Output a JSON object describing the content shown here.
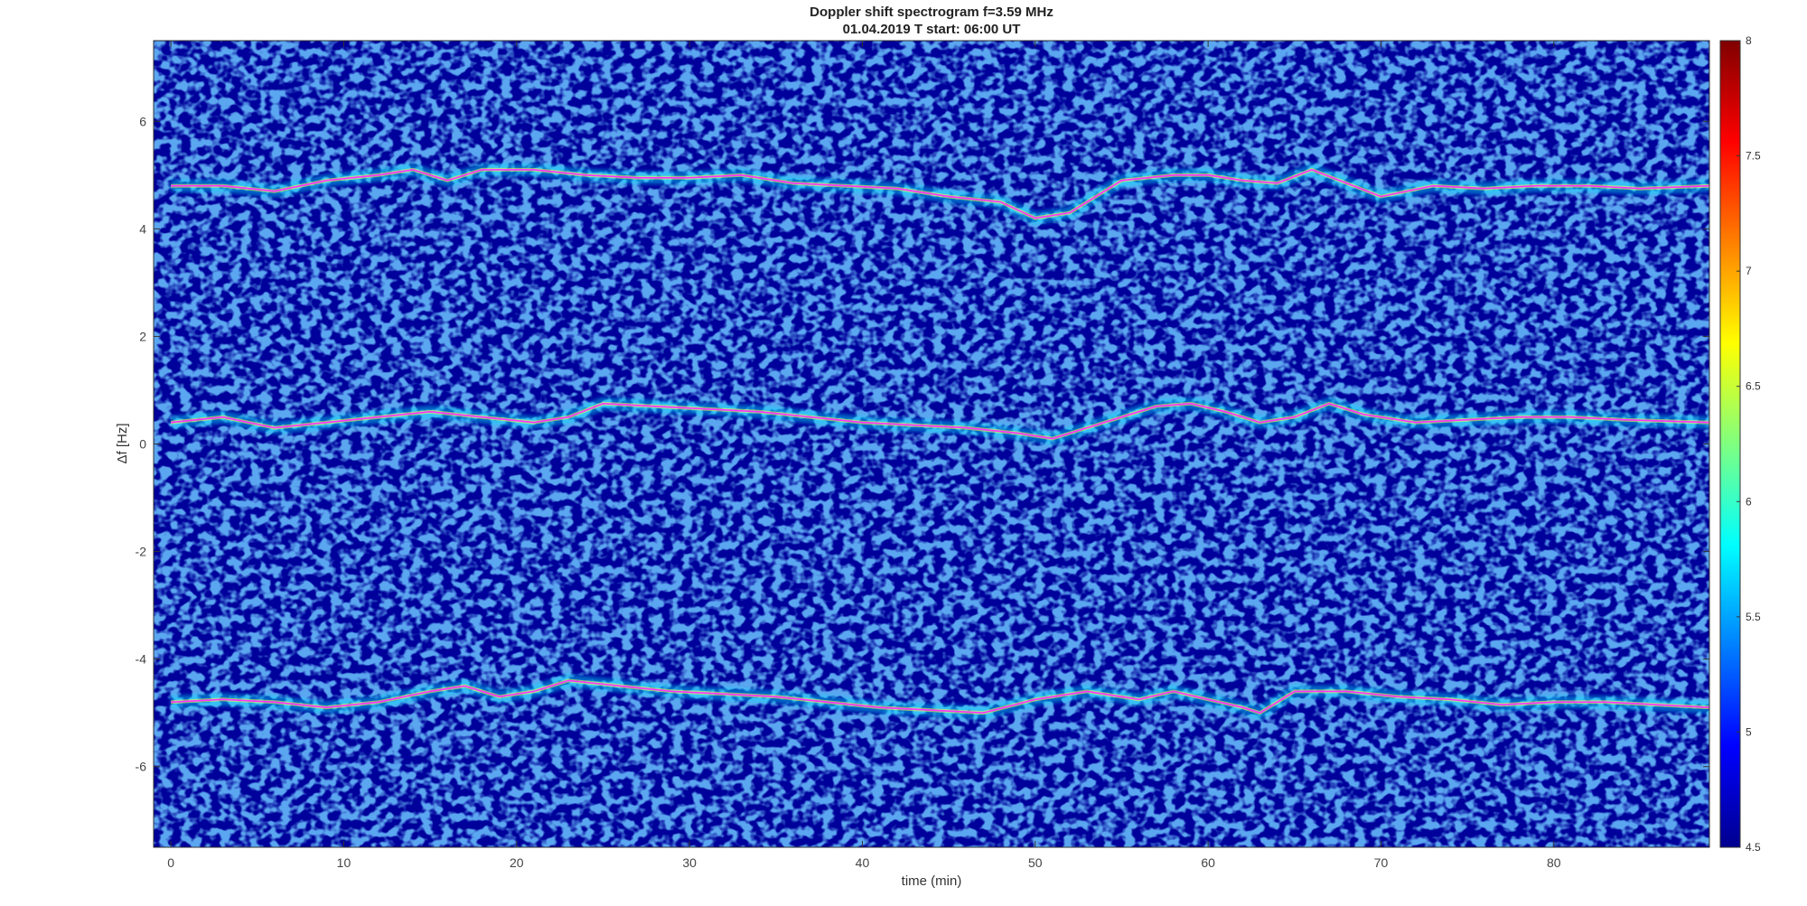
{
  "chart_data": {
    "type": "heatmap",
    "title": "Doppler shift spectrogram f=3.59 MHz",
    "subtitle": "01.04.2019   T start: 06:00 UT",
    "xlabel": "time (min)",
    "ylabel": "Δf [Hz]",
    "xlim": [
      -1,
      89
    ],
    "ylim": [
      -7.5,
      7.5
    ],
    "xticks": [
      0,
      10,
      20,
      30,
      40,
      50,
      60,
      70,
      80
    ],
    "yticks": [
      -6,
      -4,
      -2,
      0,
      2,
      4,
      6
    ],
    "colorbar": {
      "colormap": "jet",
      "range": [
        4.5,
        8
      ],
      "ticks": [
        4.5,
        5,
        5.5,
        6,
        6.5,
        7,
        7.5,
        8
      ]
    },
    "series": [
      {
        "x": [
          0,
          3,
          6,
          9,
          12,
          14,
          16,
          18,
          21,
          24,
          27,
          30,
          33,
          36,
          39,
          42,
          45,
          48,
          50,
          52,
          53,
          55,
          58,
          60,
          62,
          64,
          66,
          68,
          70,
          73,
          76,
          79,
          82,
          85,
          89
        ],
        "y": [
          4.8,
          4.8,
          4.7,
          4.9,
          5.0,
          5.1,
          4.9,
          5.1,
          5.1,
          5.0,
          4.95,
          4.95,
          5.0,
          4.85,
          4.8,
          4.75,
          4.6,
          4.5,
          4.2,
          4.3,
          4.5,
          4.9,
          5.0,
          5.0,
          4.9,
          4.85,
          5.1,
          4.85,
          4.6,
          4.8,
          4.75,
          4.8,
          4.8,
          4.75,
          4.8
        ]
      },
      {
        "x": [
          0,
          3,
          6,
          9,
          12,
          15,
          18,
          21,
          23,
          25,
          28,
          31,
          34,
          37,
          40,
          43,
          46,
          49,
          51,
          53,
          55,
          57,
          59,
          61,
          63,
          65,
          67,
          69,
          72,
          75,
          78,
          81,
          84,
          89
        ],
        "y": [
          0.4,
          0.5,
          0.3,
          0.4,
          0.5,
          0.6,
          0.5,
          0.4,
          0.5,
          0.75,
          0.7,
          0.65,
          0.6,
          0.5,
          0.4,
          0.35,
          0.3,
          0.2,
          0.1,
          0.3,
          0.5,
          0.7,
          0.75,
          0.6,
          0.4,
          0.5,
          0.75,
          0.55,
          0.4,
          0.45,
          0.5,
          0.5,
          0.45,
          0.4
        ]
      },
      {
        "x": [
          0,
          3,
          6,
          9,
          12,
          15,
          17,
          19,
          21,
          23,
          26,
          29,
          32,
          35,
          38,
          41,
          44,
          47,
          50,
          53,
          56,
          58,
          60,
          62,
          63,
          65,
          68,
          71,
          74,
          77,
          80,
          83,
          86,
          89
        ],
        "y": [
          -4.8,
          -4.75,
          -4.8,
          -4.9,
          -4.8,
          -4.6,
          -4.5,
          -4.7,
          -4.6,
          -4.4,
          -4.5,
          -4.6,
          -4.65,
          -4.7,
          -4.8,
          -4.9,
          -4.95,
          -5.0,
          -4.75,
          -4.6,
          -4.75,
          -4.6,
          -4.75,
          -4.9,
          -5.0,
          -4.6,
          -4.6,
          -4.7,
          -4.75,
          -4.85,
          -4.8,
          -4.8,
          -4.85,
          -4.9
        ]
      }
    ]
  }
}
